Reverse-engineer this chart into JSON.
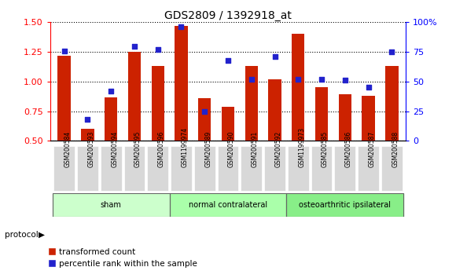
{
  "title": "GDS2809 / 1392918_at",
  "categories": [
    "GSM200584",
    "GSM200593",
    "GSM200594",
    "GSM200595",
    "GSM200596",
    "GSM1199974",
    "GSM200589",
    "GSM200590",
    "GSM200591",
    "GSM200592",
    "GSM1199973",
    "GSM200585",
    "GSM200586",
    "GSM200587",
    "GSM200588"
  ],
  "bar_values": [
    1.22,
    0.6,
    0.87,
    1.25,
    1.13,
    1.47,
    0.86,
    0.79,
    1.13,
    1.02,
    1.4,
    0.95,
    0.89,
    0.88,
    1.13
  ],
  "dot_values": [
    76,
    18,
    42,
    80,
    77,
    96,
    25,
    68,
    52,
    71,
    52,
    52,
    51,
    45,
    75
  ],
  "bar_color": "#cc2200",
  "dot_color": "#2222cc",
  "ylim_left": [
    0.5,
    1.5
  ],
  "ylim_right": [
    0,
    100
  ],
  "yticks_left": [
    0.5,
    0.75,
    1.0,
    1.25,
    1.5
  ],
  "yticks_right": [
    0,
    25,
    50,
    75,
    100
  ],
  "groups": [
    {
      "label": "sham",
      "start": 0,
      "end": 5,
      "color": "#ccffcc"
    },
    {
      "label": "normal contralateral",
      "start": 5,
      "end": 10,
      "color": "#aaffaa"
    },
    {
      "label": "osteoarthritic ipsilateral",
      "start": 10,
      "end": 15,
      "color": "#88ee88"
    }
  ],
  "protocol_label": "protocol",
  "legend_bar_label": "transformed count",
  "legend_dot_label": "percentile rank within the sample",
  "bar_width": 0.55,
  "tick_bg_color": "#d8d8d8",
  "plot_bg": "#ffffff"
}
